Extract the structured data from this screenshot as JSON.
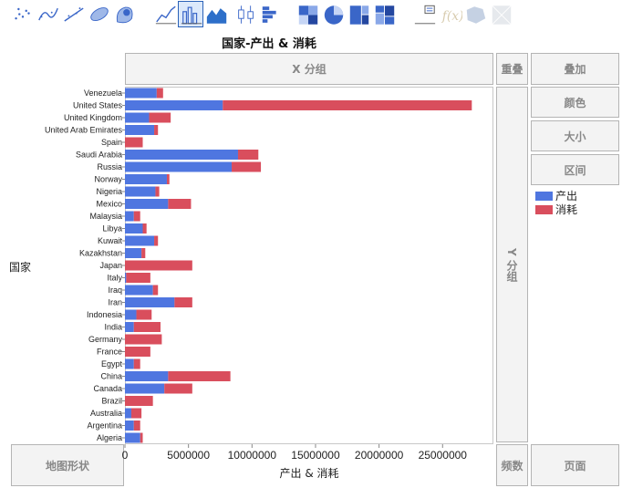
{
  "toolbar": {
    "buttons": [
      {
        "icon": "scatter-points-icon",
        "active": false,
        "disabled": false
      },
      {
        "icon": "smoother-icon",
        "active": false,
        "disabled": false
      },
      {
        "icon": "line-fit-icon",
        "active": false,
        "disabled": false
      },
      {
        "icon": "ellipse-icon",
        "active": false,
        "disabled": false
      },
      {
        "icon": "contour-icon",
        "active": false,
        "disabled": false
      },
      {
        "icon": "line-chart-icon",
        "active": false,
        "disabled": false
      },
      {
        "icon": "bar-chart-icon",
        "active": true,
        "disabled": false
      },
      {
        "icon": "area-chart-icon",
        "active": false,
        "disabled": false
      },
      {
        "icon": "box-plot-icon",
        "active": false,
        "disabled": false
      },
      {
        "icon": "histogram-icon",
        "active": false,
        "disabled": false
      },
      {
        "icon": "heatmap-icon",
        "active": false,
        "disabled": false
      },
      {
        "icon": "pie-chart-icon",
        "active": false,
        "disabled": false
      },
      {
        "icon": "treemap-icon",
        "active": false,
        "disabled": false
      },
      {
        "icon": "mosaic-icon",
        "active": false,
        "disabled": false
      },
      {
        "icon": "caption-box-icon",
        "active": false,
        "disabled": false
      },
      {
        "icon": "formula-icon",
        "active": false,
        "disabled": true
      },
      {
        "icon": "map-shape-icon",
        "active": false,
        "disabled": true
      },
      {
        "icon": "parallel-icon",
        "active": false,
        "disabled": true
      }
    ]
  },
  "zones": {
    "x_group": "X 分组",
    "overlay": "重叠",
    "stack": "叠加",
    "color": "颜色",
    "size": "大小",
    "interval": "区间",
    "y_group": "Y 分组",
    "map_shape": "地图形状",
    "freq": "频数",
    "page": "页面"
  },
  "colors": {
    "production": "#4f76e0",
    "consumption": "#d94e5d"
  },
  "chart_data": {
    "type": "bar",
    "orientation": "horizontal",
    "stacked": true,
    "title": "国家-产出 & 消耗",
    "xlabel": "产出 & 消耗",
    "ylabel": "国家",
    "xlim": [
      0,
      29000000
    ],
    "xticks": [
      0,
      5000000,
      10000000,
      15000000,
      20000000,
      25000000
    ],
    "xtick_labels": [
      "0",
      "5000000",
      "10000000",
      "15000000",
      "20000000",
      "25000000"
    ],
    "categories": [
      "Venezuela",
      "United States",
      "United Kingdom",
      "United Arab Emirates",
      "Spain",
      "Saudi Arabia",
      "Russia",
      "Norway",
      "Nigeria",
      "Mexico",
      "Malaysia",
      "Libya",
      "Kuwait",
      "Kazakhstan",
      "Japan",
      "Italy",
      "Iraq",
      "Iran",
      "Indonesia",
      "India",
      "Germany",
      "France",
      "Egypt",
      "China",
      "Canada",
      "Brazil",
      "Australia",
      "Argentina",
      "Algeria"
    ],
    "series": [
      {
        "name": "产出",
        "color": "#4f76e0",
        "values": [
          2500000,
          7700000,
          1900000,
          2300000,
          0,
          8900000,
          8400000,
          3300000,
          2400000,
          3400000,
          700000,
          1400000,
          2300000,
          1300000,
          0,
          100000,
          2200000,
          3900000,
          900000,
          700000,
          0,
          0,
          700000,
          3400000,
          3100000,
          0,
          500000,
          700000,
          1200000
        ]
      },
      {
        "name": "消耗",
        "color": "#d94e5d",
        "values": [
          500000,
          19600000,
          1700000,
          300000,
          1400000,
          1600000,
          2300000,
          200000,
          300000,
          1800000,
          500000,
          300000,
          300000,
          300000,
          5300000,
          1900000,
          400000,
          1400000,
          1200000,
          2100000,
          2900000,
          2000000,
          500000,
          4900000,
          2200000,
          2200000,
          800000,
          500000,
          200000
        ]
      }
    ],
    "legend": {
      "placement": "right",
      "entries": [
        "产出",
        "消耗"
      ]
    },
    "grid": false
  }
}
